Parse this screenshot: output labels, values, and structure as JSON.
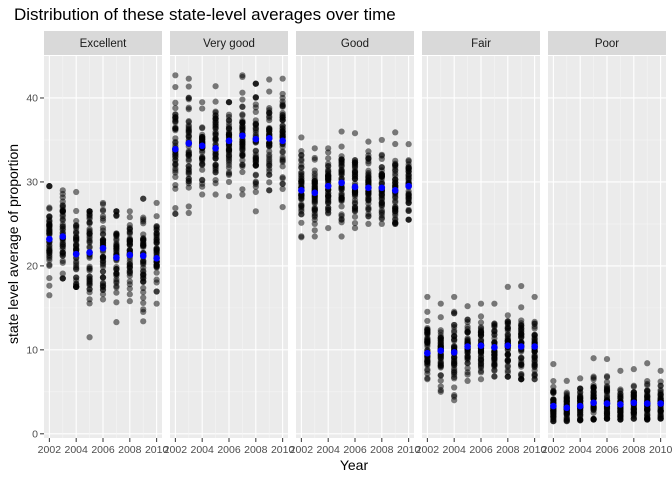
{
  "chart_data": {
    "type": "scatter",
    "title": "Distribution of these state-level averages over time",
    "xlabel": "Year",
    "ylabel": "state level average of proportion",
    "facets": [
      "Excellent",
      "Very good",
      "Good",
      "Fair",
      "Poor"
    ],
    "x_ticks": [
      2002,
      2004,
      2006,
      2008,
      2010
    ],
    "y_ticks": [
      0,
      10,
      20,
      30,
      40
    ],
    "xlim": [
      2001.6,
      2010.4
    ],
    "ylim": [
      -0.5,
      45
    ],
    "grid": true,
    "colors": {
      "panel_bg": "#ebebeb",
      "strip_bg": "#d9d9d9",
      "grid_major": "#ffffff",
      "point": "#000000",
      "mean_point": "#0000ff"
    },
    "series": [
      {
        "facet": "Excellent",
        "mean": [
          {
            "x": 2002,
            "y": 23.2
          },
          {
            "x": 2003,
            "y": 23.5
          },
          {
            "x": 2004,
            "y": 21.4
          },
          {
            "x": 2005,
            "y": 21.6
          },
          {
            "x": 2006,
            "y": 22.1
          },
          {
            "x": 2007,
            "y": 21.0
          },
          {
            "x": 2008,
            "y": 21.3
          },
          {
            "x": 2009,
            "y": 21.2
          },
          {
            "x": 2010,
            "y": 20.9
          }
        ],
        "range": [
          {
            "x": 2002,
            "min": 16.5,
            "max": 29.5
          },
          {
            "x": 2003,
            "min": 18.5,
            "max": 29.0
          },
          {
            "x": 2004,
            "min": 17.5,
            "max": 28.8
          },
          {
            "x": 2005,
            "min": 11.5,
            "max": 26.5
          },
          {
            "x": 2006,
            "min": 16.0,
            "max": 27.5
          },
          {
            "x": 2007,
            "min": 13.3,
            "max": 26.5
          },
          {
            "x": 2008,
            "min": 15.8,
            "max": 26.5
          },
          {
            "x": 2009,
            "min": 13.4,
            "max": 28.0
          },
          {
            "x": 2010,
            "min": 15.5,
            "max": 27.5
          }
        ]
      },
      {
        "facet": "Very good",
        "mean": [
          {
            "x": 2002,
            "y": 33.9
          },
          {
            "x": 2003,
            "y": 34.6
          },
          {
            "x": 2004,
            "y": 34.3
          },
          {
            "x": 2005,
            "y": 34.0
          },
          {
            "x": 2006,
            "y": 34.9
          },
          {
            "x": 2007,
            "y": 35.5
          },
          {
            "x": 2008,
            "y": 35.1
          },
          {
            "x": 2009,
            "y": 35.2
          },
          {
            "x": 2010,
            "y": 34.9
          }
        ],
        "range": [
          {
            "x": 2002,
            "min": 26.2,
            "max": 42.7
          },
          {
            "x": 2003,
            "min": 26.3,
            "max": 42.3
          },
          {
            "x": 2004,
            "min": 28.5,
            "max": 39.5
          },
          {
            "x": 2005,
            "min": 28.5,
            "max": 41.4
          },
          {
            "x": 2006,
            "min": 28.3,
            "max": 39.5
          },
          {
            "x": 2007,
            "min": 28.5,
            "max": 42.7
          },
          {
            "x": 2008,
            "min": 26.5,
            "max": 41.7
          },
          {
            "x": 2009,
            "min": 29.0,
            "max": 42.2
          },
          {
            "x": 2010,
            "min": 27.0,
            "max": 42.3
          }
        ]
      },
      {
        "facet": "Good",
        "mean": [
          {
            "x": 2002,
            "y": 29.0
          },
          {
            "x": 2003,
            "y": 28.7
          },
          {
            "x": 2004,
            "y": 29.5
          },
          {
            "x": 2005,
            "y": 29.9
          },
          {
            "x": 2006,
            "y": 29.4
          },
          {
            "x": 2007,
            "y": 29.3
          },
          {
            "x": 2008,
            "y": 29.3
          },
          {
            "x": 2009,
            "y": 29.0
          },
          {
            "x": 2010,
            "y": 29.5
          }
        ],
        "range": [
          {
            "x": 2002,
            "min": 23.4,
            "max": 35.3
          },
          {
            "x": 2003,
            "min": 23.5,
            "max": 34.0
          },
          {
            "x": 2004,
            "min": 24.5,
            "max": 34.0
          },
          {
            "x": 2005,
            "min": 23.5,
            "max": 36.0
          },
          {
            "x": 2006,
            "min": 24.5,
            "max": 35.8
          },
          {
            "x": 2007,
            "min": 25.0,
            "max": 34.8
          },
          {
            "x": 2008,
            "min": 25.0,
            "max": 35.0
          },
          {
            "x": 2009,
            "min": 25.0,
            "max": 35.9
          },
          {
            "x": 2010,
            "min": 25.5,
            "max": 34.5
          }
        ]
      },
      {
        "facet": "Fair",
        "mean": [
          {
            "x": 2002,
            "y": 9.6
          },
          {
            "x": 2003,
            "y": 9.9
          },
          {
            "x": 2004,
            "y": 9.7
          },
          {
            "x": 2005,
            "y": 10.4
          },
          {
            "x": 2006,
            "y": 10.5
          },
          {
            "x": 2007,
            "y": 10.3
          },
          {
            "x": 2008,
            "y": 10.5
          },
          {
            "x": 2009,
            "y": 10.4
          },
          {
            "x": 2010,
            "y": 10.4
          }
        ],
        "range": [
          {
            "x": 2002,
            "min": 6.5,
            "max": 16.3
          },
          {
            "x": 2003,
            "min": 5.0,
            "max": 15.5
          },
          {
            "x": 2004,
            "min": 4.0,
            "max": 16.3
          },
          {
            "x": 2005,
            "min": 6.3,
            "max": 15.2
          },
          {
            "x": 2006,
            "min": 6.5,
            "max": 15.5
          },
          {
            "x": 2007,
            "min": 6.8,
            "max": 15.5
          },
          {
            "x": 2008,
            "min": 6.8,
            "max": 17.5
          },
          {
            "x": 2009,
            "min": 6.5,
            "max": 17.6
          },
          {
            "x": 2010,
            "min": 6.5,
            "max": 16.3
          }
        ]
      },
      {
        "facet": "Poor",
        "mean": [
          {
            "x": 2002,
            "y": 3.3
          },
          {
            "x": 2003,
            "y": 3.1
          },
          {
            "x": 2004,
            "y": 3.3
          },
          {
            "x": 2005,
            "y": 3.7
          },
          {
            "x": 2006,
            "y": 3.6
          },
          {
            "x": 2007,
            "y": 3.5
          },
          {
            "x": 2008,
            "y": 3.7
          },
          {
            "x": 2009,
            "y": 3.6
          },
          {
            "x": 2010,
            "y": 3.6
          }
        ],
        "range": [
          {
            "x": 2002,
            "min": 1.5,
            "max": 8.3
          },
          {
            "x": 2003,
            "min": 1.5,
            "max": 6.3
          },
          {
            "x": 2004,
            "min": 1.6,
            "max": 6.6
          },
          {
            "x": 2005,
            "min": 1.7,
            "max": 9.0
          },
          {
            "x": 2006,
            "min": 1.8,
            "max": 8.9
          },
          {
            "x": 2007,
            "min": 1.7,
            "max": 7.5
          },
          {
            "x": 2008,
            "min": 1.8,
            "max": 7.7
          },
          {
            "x": 2009,
            "min": 1.7,
            "max": 8.4
          },
          {
            "x": 2010,
            "min": 1.8,
            "max": 7.5
          }
        ]
      }
    ]
  }
}
